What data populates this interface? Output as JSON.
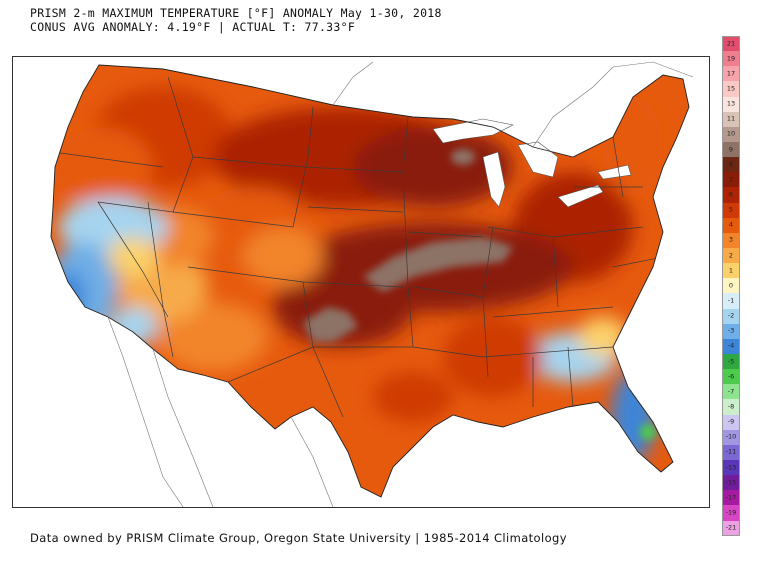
{
  "header": {
    "line1": "PRISM 2-m MAXIMUM TEMPERATURE [°F] ANOMALY May 1-30, 2018",
    "line2": "CONUS AVG ANOMALY: 4.19°F | ACTUAL T: 77.33°F"
  },
  "footer": {
    "credit": "Data owned by PRISM Climate Group, Oregon State University | 1985-2014 Climatology"
  },
  "legend": {
    "items": [
      {
        "label": "21",
        "color": "#e24d6e"
      },
      {
        "label": "19",
        "color": "#ef7f8e"
      },
      {
        "label": "17",
        "color": "#f6a4ac"
      },
      {
        "label": "15",
        "color": "#fac9c6"
      },
      {
        "label": "13",
        "color": "#fbe6df"
      },
      {
        "label": "11",
        "color": "#d8c3b6"
      },
      {
        "label": "10",
        "color": "#b49a8c"
      },
      {
        "label": "9",
        "color": "#8d7266"
      },
      {
        "label": "8",
        "color": "#6c2614"
      },
      {
        "label": "7",
        "color": "#8a1d08"
      },
      {
        "label": "6",
        "color": "#ac2305"
      },
      {
        "label": "5",
        "color": "#cf3a06"
      },
      {
        "label": "4",
        "color": "#e65a0e"
      },
      {
        "label": "3",
        "color": "#f2842a"
      },
      {
        "label": "2",
        "color": "#f7aa48"
      },
      {
        "label": "1",
        "color": "#fbd16c"
      },
      {
        "label": "0",
        "color": "#fff5c2"
      },
      {
        "label": "-1",
        "color": "#d7eef8"
      },
      {
        "label": "-2",
        "color": "#a6d4ef"
      },
      {
        "label": "-3",
        "color": "#6faee6"
      },
      {
        "label": "-4",
        "color": "#3d85d8"
      },
      {
        "label": "-5",
        "color": "#2fa843"
      },
      {
        "label": "-6",
        "color": "#4ccb4d"
      },
      {
        "label": "-7",
        "color": "#8de38e"
      },
      {
        "label": "-8",
        "color": "#cdeecb"
      },
      {
        "label": "-9",
        "color": "#ccc6f0"
      },
      {
        "label": "-10",
        "color": "#a096e2"
      },
      {
        "label": "-11",
        "color": "#7b68d2"
      },
      {
        "label": "-13",
        "color": "#5a36b9"
      },
      {
        "label": "-15",
        "color": "#701d9d"
      },
      {
        "label": "-17",
        "color": "#a61aa2"
      },
      {
        "label": "-19",
        "color": "#d645c3"
      },
      {
        "label": "-21",
        "color": "#eca1e3"
      }
    ]
  }
}
